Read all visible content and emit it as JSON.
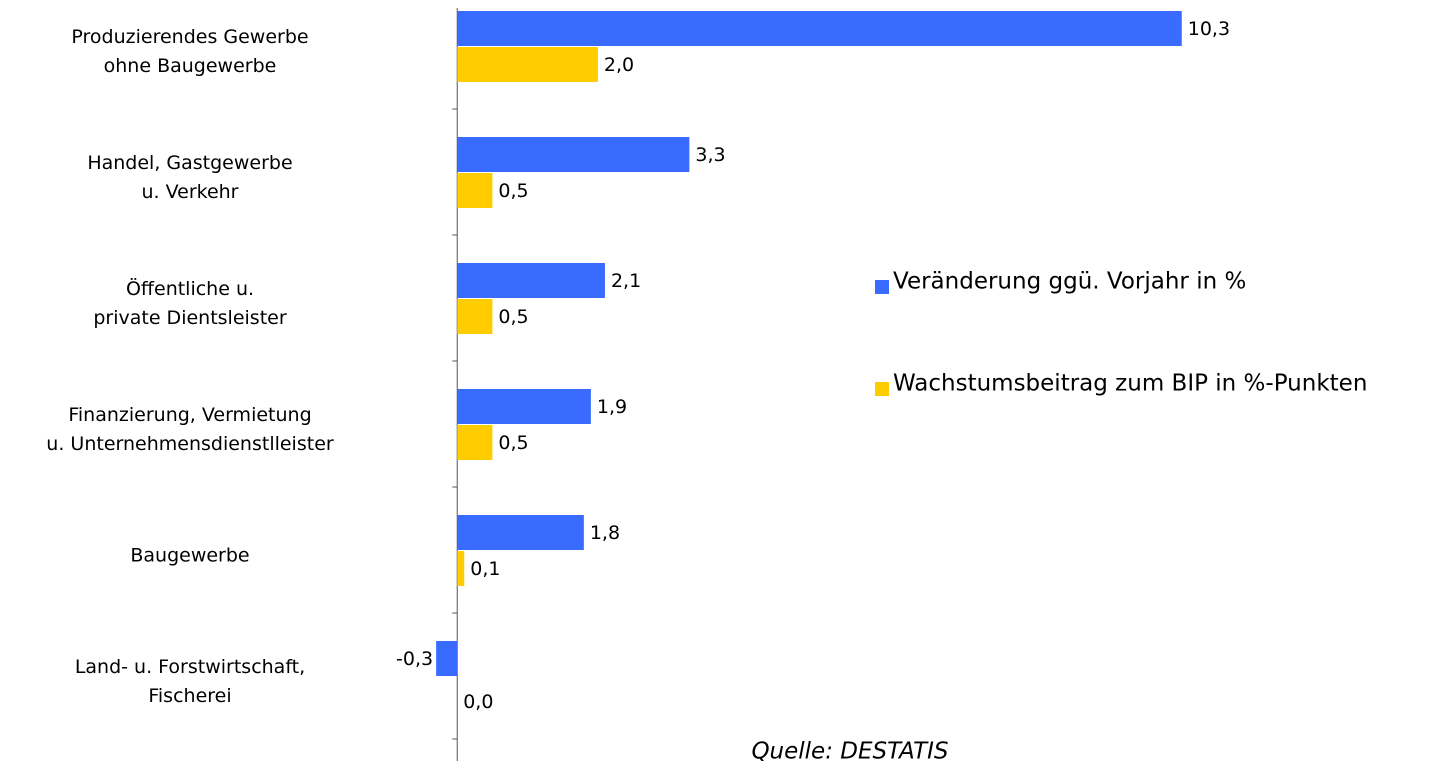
{
  "chart_data": {
    "type": "hbar",
    "categories": [
      [
        "Produzierendes Gewerbe",
        "ohne Baugewerbe"
      ],
      [
        "Handel, Gastgewerbe",
        "u. Verkehr"
      ],
      [
        "Öffentliche u.",
        "private Dientsleister"
      ],
      [
        "Finanzierung, Vermietung",
        "u. Unternehmensdienstlleister"
      ],
      [
        "Baugewerbe"
      ],
      [
        "Land- u. Forstwirtschaft,",
        "Fischerei"
      ]
    ],
    "series": [
      {
        "name": "Veränderung ggü. Vorjahr in %",
        "color": "#3a6bff",
        "values": [
          10.3,
          3.3,
          2.1,
          1.9,
          1.8,
          -0.3
        ],
        "value_labels": [
          "10,3",
          "3,3",
          "2,1",
          "1,9",
          "1,8",
          "-0,3"
        ]
      },
      {
        "name": "Wachstumsbeitrag zum BIP in %-Punkten",
        "color": "#ffcc00",
        "values": [
          2.0,
          0.5,
          0.5,
          0.5,
          0.1,
          0.0
        ],
        "value_labels": [
          "2,0",
          "0,5",
          "0,5",
          "0,5",
          "0,1",
          "0,0"
        ]
      }
    ],
    "xlim": [
      -6.5,
      13.9
    ],
    "legend": "right",
    "source": "Quelle: DESTATIS"
  }
}
